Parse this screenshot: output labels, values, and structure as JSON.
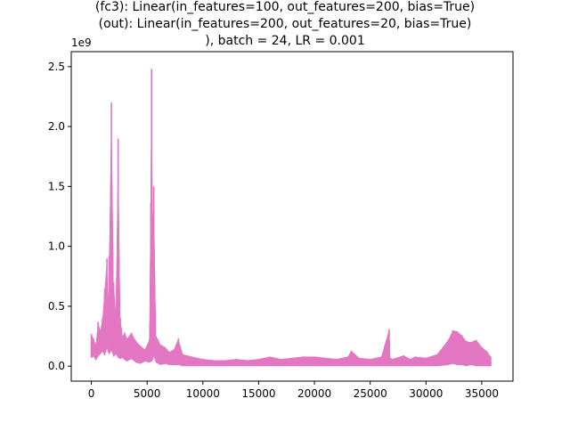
{
  "chart_data": {
    "type": "line",
    "title_lines": [
      "(fc3): Linear(in_features=100, out_features=200, bias=True)",
      "(out): Linear(in_features=200, out_features=20, bias=True)",
      "), batch = 24, LR = 0.001"
    ],
    "xlabel": "",
    "ylabel": "",
    "xlim": [
      -1800,
      37800
    ],
    "ylim": [
      -0.125,
      2.625
    ],
    "y_scale_label": "1e9",
    "x_ticks": [
      0,
      5000,
      10000,
      15000,
      20000,
      25000,
      30000,
      35000
    ],
    "x_tick_labels": [
      "0",
      "5000",
      "10000",
      "15000",
      "20000",
      "25000",
      "30000",
      "35000"
    ],
    "y_ticks": [
      0.0,
      0.5,
      1.0,
      1.5,
      2.0,
      2.5
    ],
    "y_tick_labels": [
      "0.0",
      "0.5",
      "1.0",
      "1.5",
      "2.0",
      "2.5"
    ],
    "grid": false,
    "series": [
      {
        "color": "#e377c2",
        "dark_color": "#404040",
        "x": [
          0,
          200,
          400,
          600,
          800,
          1000,
          1200,
          1400,
          1500,
          1600,
          1800,
          2000,
          2200,
          2400,
          2600,
          2800,
          3000,
          3200,
          3600,
          4000,
          4400,
          4800,
          5200,
          5400,
          5500,
          5600,
          5800,
          6000,
          6200,
          6600,
          7000,
          7400,
          7800,
          8200,
          8600,
          9000,
          10000,
          11000,
          12000,
          13000,
          14000,
          15000,
          16000,
          17000,
          18000,
          19000,
          20000,
          21000,
          22000,
          23000,
          23300,
          24000,
          25000,
          26000,
          26700,
          26800,
          27000,
          28000,
          28600,
          29000,
          30000,
          31000,
          32000,
          32400,
          32800,
          33200,
          33600,
          34000,
          34500,
          35000,
          35500,
          35800
        ],
        "max": [
          0.27,
          0.23,
          0.18,
          0.37,
          0.3,
          0.4,
          0.65,
          0.9,
          0.55,
          0.92,
          2.2,
          0.7,
          0.45,
          1.9,
          0.4,
          0.25,
          0.28,
          0.23,
          0.28,
          0.21,
          0.17,
          0.14,
          0.22,
          2.48,
          1.2,
          1.5,
          0.25,
          0.22,
          0.18,
          0.16,
          0.12,
          0.14,
          0.23,
          0.1,
          0.09,
          0.08,
          0.06,
          0.05,
          0.05,
          0.06,
          0.05,
          0.06,
          0.08,
          0.06,
          0.07,
          0.08,
          0.08,
          0.07,
          0.06,
          0.08,
          0.13,
          0.07,
          0.06,
          0.08,
          0.31,
          0.07,
          0.06,
          0.09,
          0.06,
          0.08,
          0.07,
          0.1,
          0.22,
          0.3,
          0.29,
          0.26,
          0.21,
          0.2,
          0.22,
          0.16,
          0.12,
          0.08
        ],
        "min": [
          0.07,
          0.08,
          0.05,
          0.08,
          0.1,
          0.12,
          0.09,
          0.15,
          0.12,
          0.1,
          0.13,
          0.08,
          0.1,
          0.07,
          0.06,
          0.07,
          0.05,
          0.04,
          0.06,
          0.03,
          0.02,
          0.04,
          0.03,
          0.04,
          0.05,
          0.08,
          0.03,
          0.02,
          0.01,
          0.02,
          0.01,
          0.01,
          0.01,
          0.0,
          0.0,
          0.0,
          0.0,
          0.0,
          0.0,
          0.0,
          0.0,
          0.0,
          0.0,
          0.0,
          0.0,
          0.0,
          0.0,
          0.0,
          0.0,
          0.0,
          0.0,
          0.0,
          0.0,
          0.0,
          0.0,
          0.0,
          0.0,
          0.0,
          0.0,
          0.0,
          0.0,
          0.0,
          0.01,
          0.02,
          0.01,
          0.01,
          0.0,
          0.01,
          0.0,
          0.0,
          0.0,
          0.0
        ]
      }
    ]
  }
}
